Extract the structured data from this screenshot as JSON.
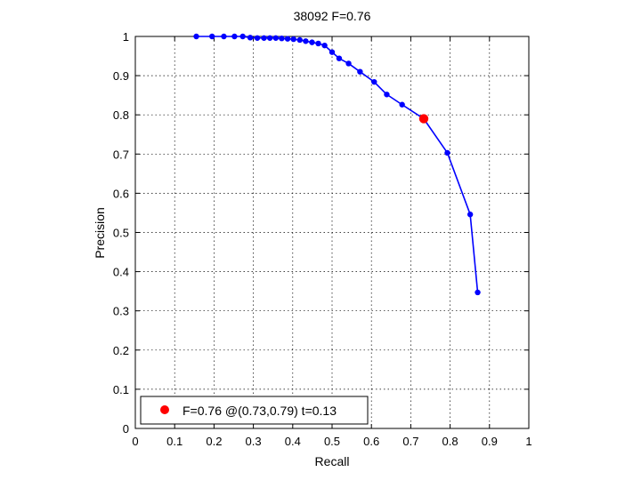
{
  "chart_data": {
    "type": "line",
    "title": "38092 F=0.76",
    "xlabel": "Recall",
    "ylabel": "Precision",
    "xlim": [
      0,
      1
    ],
    "ylim": [
      0,
      1
    ],
    "grid": true,
    "xticks": [
      "0",
      "0.1",
      "0.2",
      "0.3",
      "0.4",
      "0.5",
      "0.6",
      "0.7",
      "0.8",
      "0.9",
      "1"
    ],
    "yticks": [
      "0",
      "0.1",
      "0.2",
      "0.3",
      "0.4",
      "0.5",
      "0.6",
      "0.7",
      "0.8",
      "0.9",
      "1"
    ],
    "series": [
      {
        "color": "#0000ff",
        "marker": "dot",
        "x": [
          0.155,
          0.195,
          0.225,
          0.252,
          0.273,
          0.292,
          0.31,
          0.327,
          0.342,
          0.357,
          0.372,
          0.387,
          0.402,
          0.418,
          0.433,
          0.449,
          0.465,
          0.481,
          0.5,
          0.518,
          0.542,
          0.571,
          0.607,
          0.639,
          0.678,
          0.733,
          0.793,
          0.851,
          0.87
        ],
        "y": [
          1.0,
          1.0,
          1.0,
          1.0,
          1.0,
          0.997,
          0.996,
          0.996,
          0.996,
          0.996,
          0.995,
          0.994,
          0.993,
          0.991,
          0.988,
          0.985,
          0.982,
          0.977,
          0.96,
          0.944,
          0.931,
          0.91,
          0.884,
          0.852,
          0.826,
          0.79,
          0.703,
          0.546,
          0.347
        ]
      }
    ],
    "highlight": {
      "color": "#ff0000",
      "x": 0.733,
      "y": 0.79
    },
    "legend": {
      "position": "bottom-left",
      "label": "F=0.76 @(0.73,0.79) t=0.13"
    }
  }
}
